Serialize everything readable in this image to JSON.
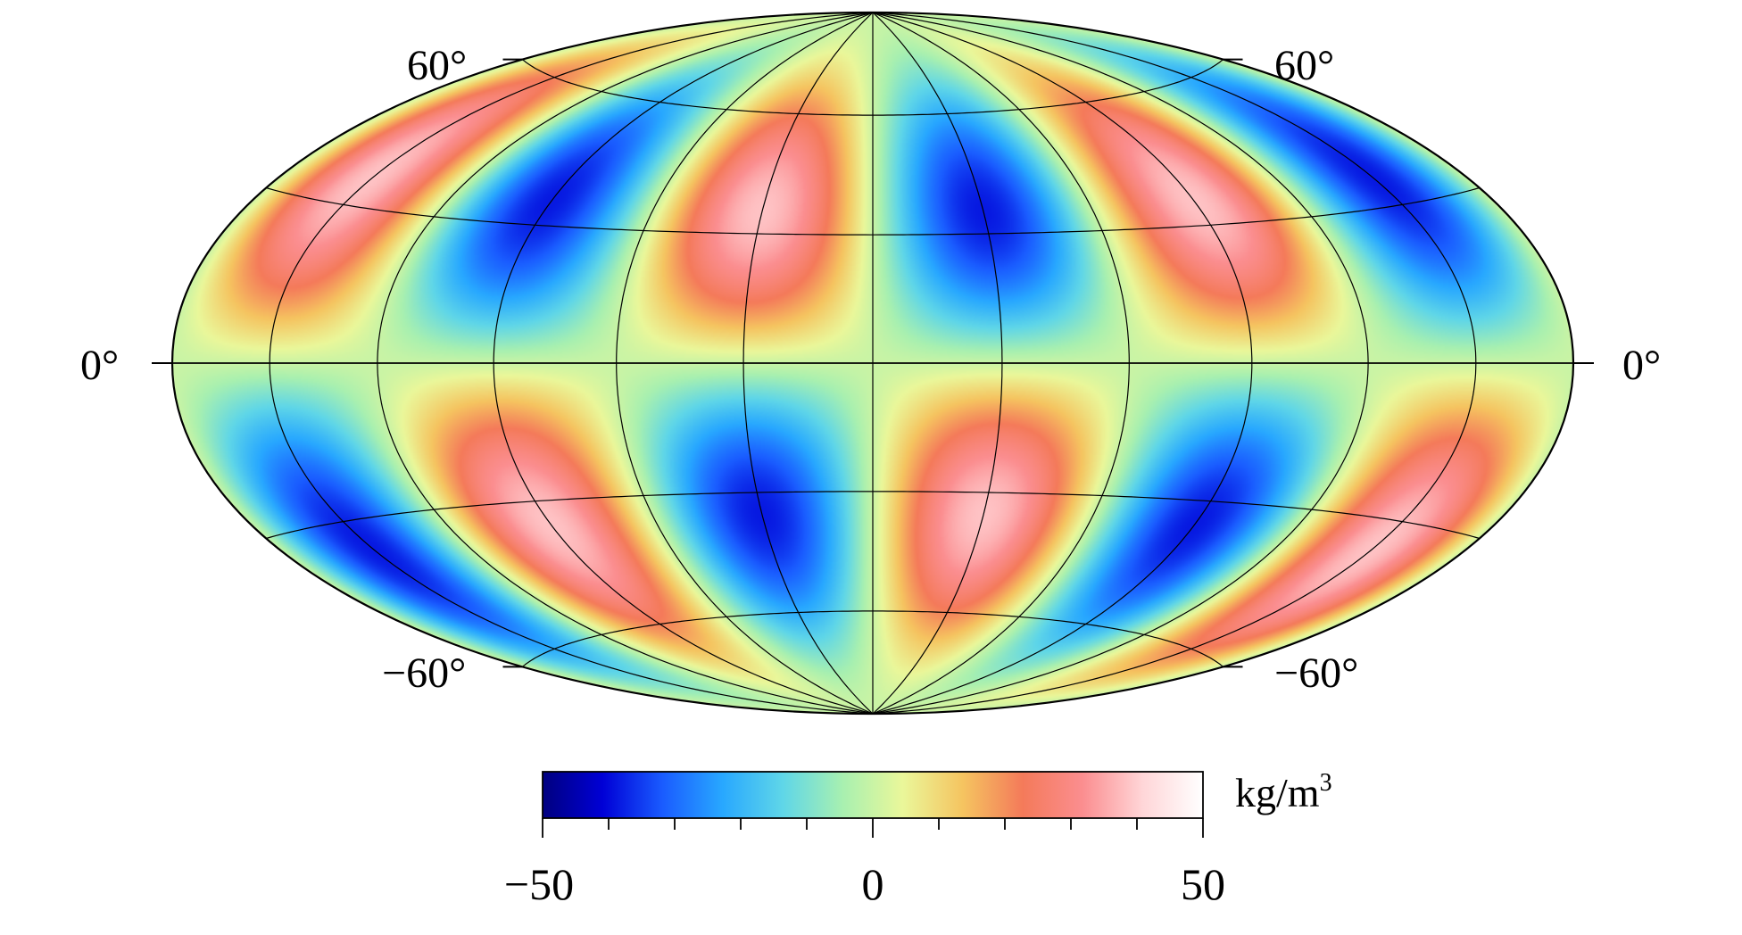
{
  "map": {
    "projection": "Hammer-Aitoff (elliptical)",
    "lat_labels": {
      "north": "60°",
      "equator": "0°",
      "south": "−60°"
    },
    "field": {
      "type": "spherical-harmonic pattern",
      "lobes_per_hemisphere": 3,
      "symmetry": "antisymmetric about equator"
    }
  },
  "colorbar": {
    "min_label": "−50",
    "mid_label": "0",
    "max_label": "50",
    "min": -50,
    "max": 50,
    "unit_text": "kg/m",
    "unit_exp": "3",
    "colors": [
      "#00007f",
      "#0000d6",
      "#1a5cff",
      "#28a8ff",
      "#5fd6e8",
      "#a8f0b0",
      "#eaf79a",
      "#f5c460",
      "#f47a5a",
      "#fb8e90",
      "#ffd6d8",
      "#ffffff"
    ]
  }
}
